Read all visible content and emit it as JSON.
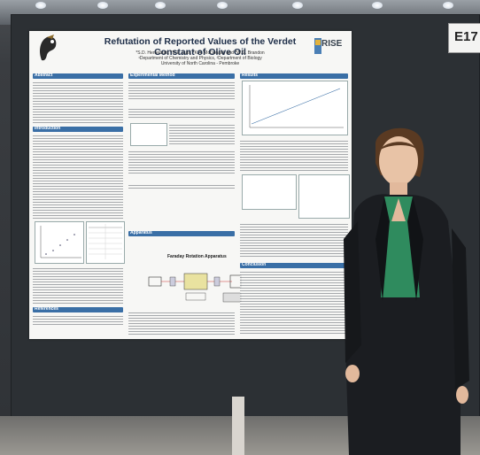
{
  "scene": {
    "booth_label": "E17"
  },
  "poster": {
    "title": "Refutation of Reported Values of the Verdet Constant of Olive Oil",
    "authors": "*S.D. Herrerbuitl, *D.E. Luis, *K.A. McDonald, and *W.G. Brandon",
    "departments": "¹Department of Chemistry and Physics, ²Department of Biology",
    "university": "University of North Carolina - Pembroke",
    "right_logo": "RISE",
    "sections": {
      "abstract": "Abstract",
      "introduction": "Introduction",
      "experimental": "Experimental Method",
      "results": "Results",
      "apparatus": "Apparatus",
      "conclusion": "Conclusion",
      "references": "References"
    },
    "apparatus_title": "Faraday Rotation Apparatus"
  }
}
